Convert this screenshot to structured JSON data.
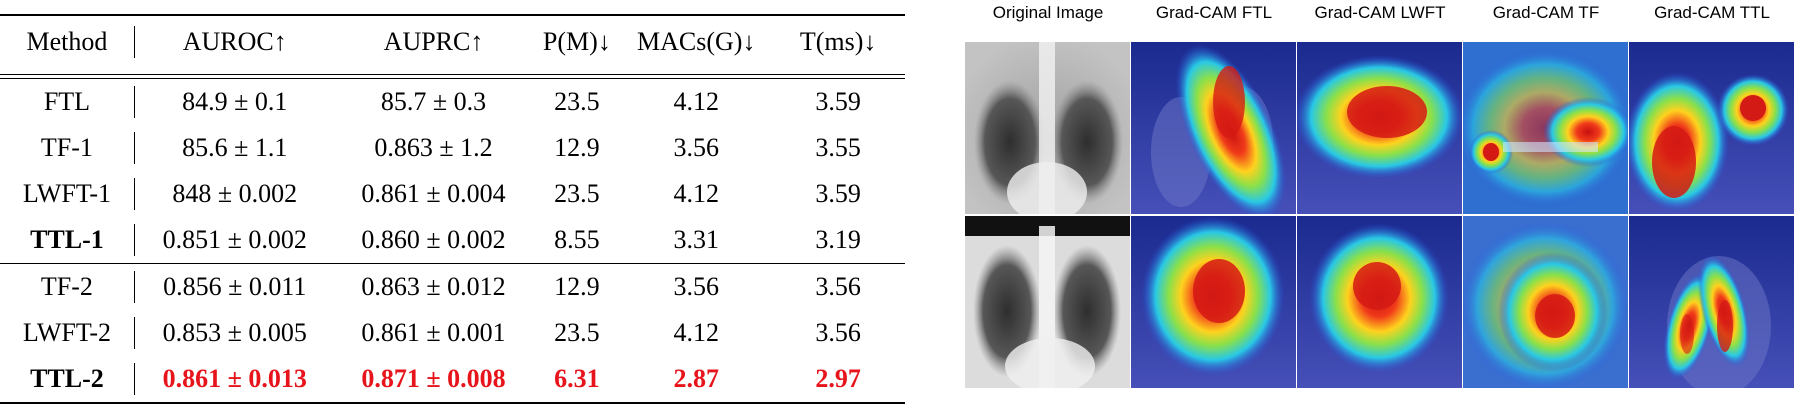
{
  "table": {
    "headers": [
      "Method",
      "AUROC↑",
      "AUPRC↑",
      "P(M)↓",
      "MACs(G)↓",
      "T(ms)↓"
    ],
    "group1": [
      [
        "FTL",
        "84.9 ± 0.1",
        "85.7 ± 0.3",
        "23.5",
        "4.12",
        "3.59"
      ],
      [
        "TF-1",
        "85.6 ± 1.1",
        "0.863 ± 1.2",
        "12.9",
        "3.56",
        "3.55"
      ],
      [
        "LWFT-1",
        "848 ± 0.002",
        "0.861 ± 0.004",
        "23.5",
        "4.12",
        "3.59"
      ],
      [
        "TTL-1",
        "0.851 ± 0.002",
        "0.860 ± 0.002",
        "8.55",
        "3.31",
        "3.19"
      ]
    ],
    "group2": [
      [
        "TF-2",
        "0.856 ± 0.011",
        "0.863 ± 0.012",
        "12.9",
        "3.56",
        "3.56"
      ],
      [
        "LWFT-2",
        "0.853 ± 0.005",
        "0.861 ± 0.001",
        "23.5",
        "4.12",
        "3.56"
      ],
      [
        "TTL-2",
        "0.861 ± 0.013",
        "0.871 ± 0.008",
        "6.31",
        "2.87",
        "2.97"
      ]
    ]
  },
  "figure": {
    "columns": [
      "Original Image",
      "Grad-CAM FTL",
      "Grad-CAM LWFT",
      "Grad-CAM TF",
      "Grad-CAM TTL"
    ]
  },
  "highlight_color": "#e8141c"
}
